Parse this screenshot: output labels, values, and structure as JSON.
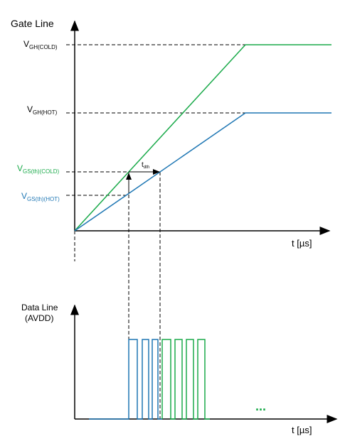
{
  "gate": {
    "title": "Gate Line",
    "levels": [
      {
        "main": "V",
        "sub": "GH(COLD)"
      },
      {
        "main": "V",
        "sub": "GH(HOT)"
      },
      {
        "main": "V",
        "sub": "GS(th)(COLD)"
      },
      {
        "main": "V",
        "sub": "GS(th)(HOT)"
      }
    ],
    "delay": {
      "main": "t",
      "sub": "dth"
    },
    "axis": "t [µs]"
  },
  "data": {
    "title": "Data Line",
    "subtitle": "(AVDD)",
    "axis": "t [µs]",
    "more": "..."
  }
}
